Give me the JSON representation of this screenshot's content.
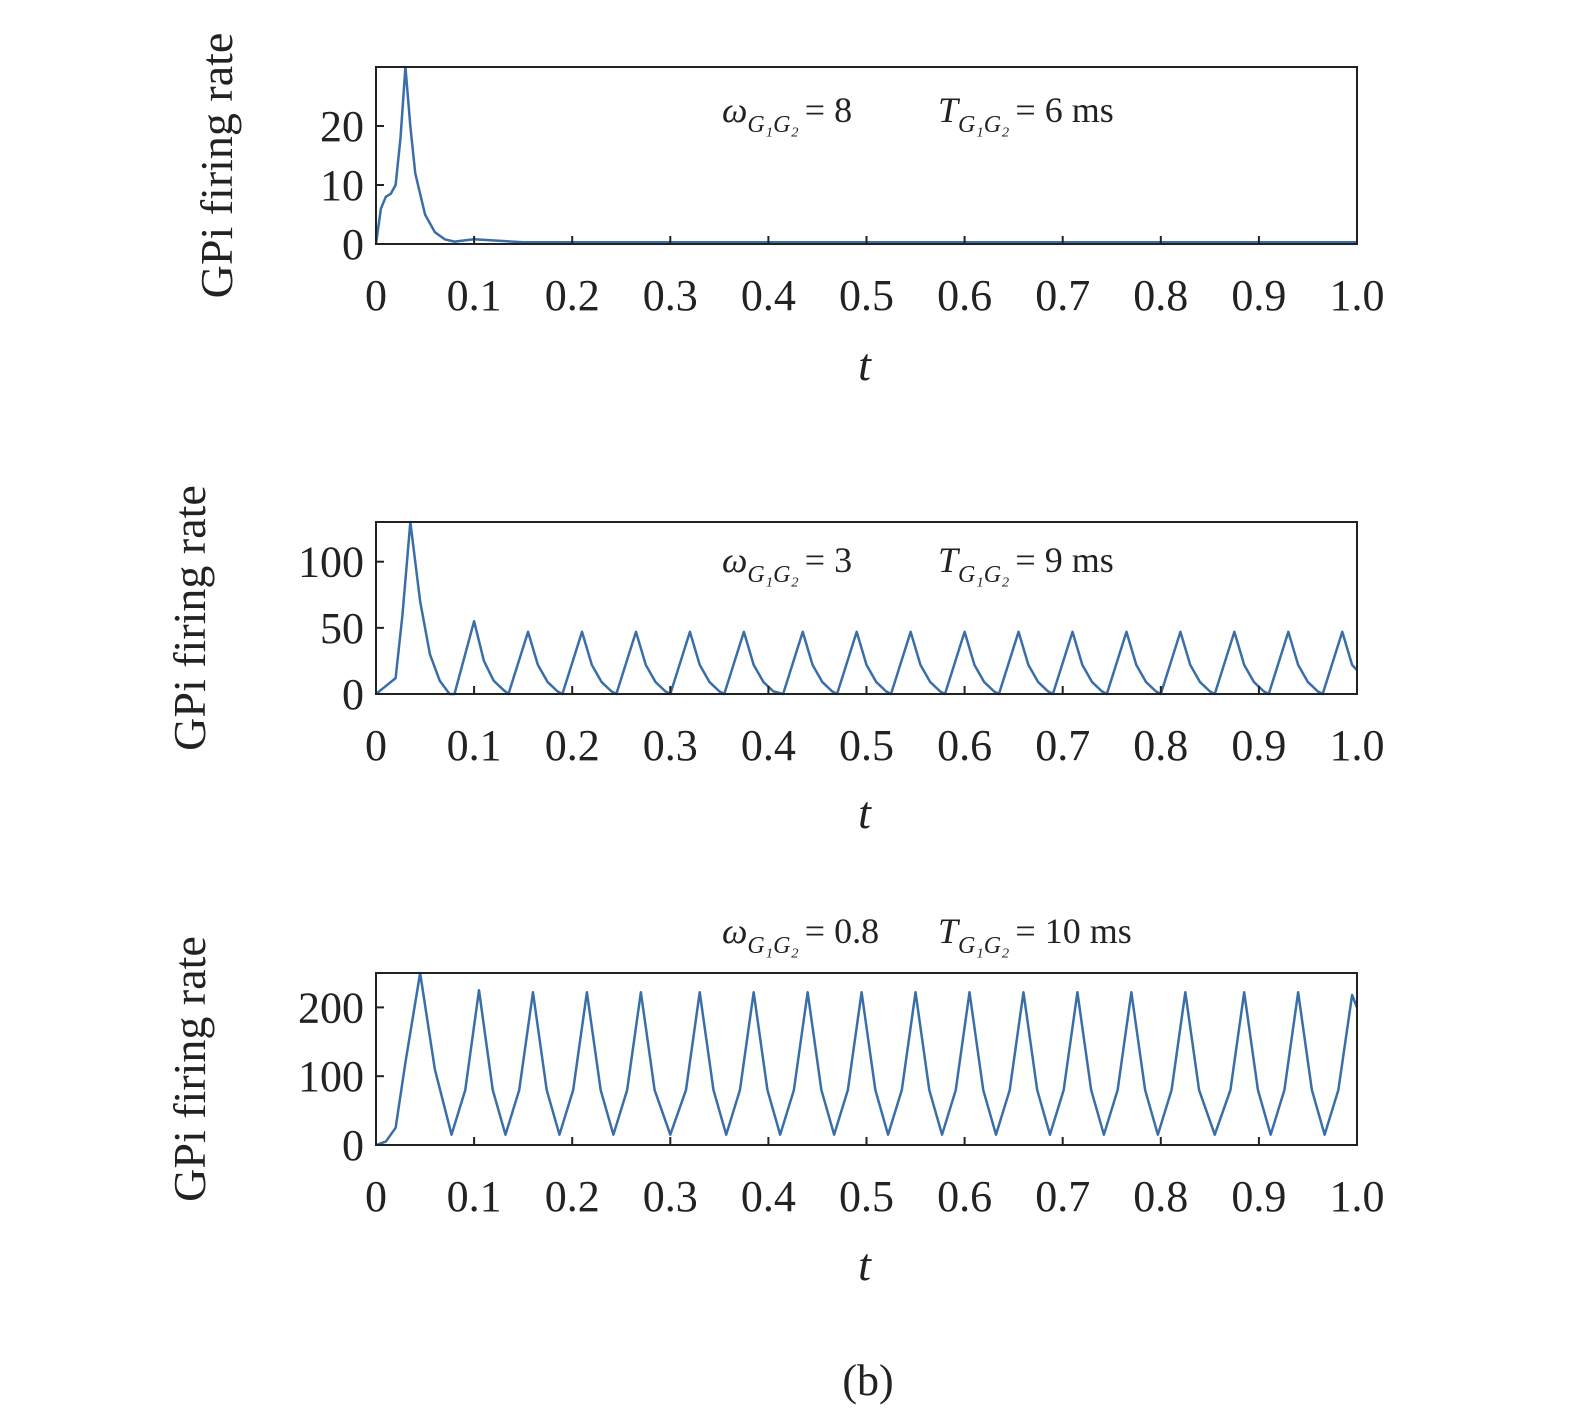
{
  "caption": "(b)",
  "chart_data": [
    {
      "type": "line",
      "ylabel": "GPi firing rate",
      "xlabel": "t",
      "color": "#3a6ea8",
      "annotations": [
        {
          "symbol": "ω",
          "subscript": "G₁G₂",
          "text": "= 8"
        },
        {
          "symbol": "T",
          "subscript": "G₁G₂",
          "text": "= 6 ms"
        }
      ],
      "xlim": [
        0,
        1
      ],
      "ylim": [
        0,
        30
      ],
      "xticks": [
        0,
        0.1,
        0.2,
        0.3,
        0.4,
        0.5,
        0.6,
        0.7,
        0.8,
        0.9,
        {
          "value": 1,
          "label": "1.0"
        }
      ],
      "yticks": [
        0,
        10,
        20
      ],
      "x": [
        0,
        0.005,
        0.01,
        0.015,
        0.02,
        0.025,
        0.03,
        0.035,
        0.04,
        0.05,
        0.06,
        0.07,
        0.08,
        0.1,
        0.15,
        0.2,
        0.3,
        0.4,
        0.5,
        0.6,
        0.7,
        0.8,
        0.9,
        1.0
      ],
      "values": [
        0,
        6,
        8,
        8.5,
        10,
        18,
        30,
        20,
        12,
        5,
        2,
        0.8,
        0.4,
        0.8,
        0.3,
        0.3,
        0.3,
        0.3,
        0.3,
        0.3,
        0.3,
        0.3,
        0.3,
        0.3
      ]
    },
    {
      "type": "line",
      "ylabel": "GPi firing rate",
      "xlabel": "t",
      "color": "#3a6ea8",
      "annotations": [
        {
          "symbol": "ω",
          "subscript": "G₁G₂",
          "text": "= 3"
        },
        {
          "symbol": "T",
          "subscript": "G₁G₂",
          "text": "= 9 ms"
        }
      ],
      "xlim": [
        0,
        1
      ],
      "ylim": [
        0,
        130
      ],
      "xticks": [
        0,
        0.1,
        0.2,
        0.3,
        0.4,
        0.5,
        0.6,
        0.7,
        0.8,
        0.9,
        {
          "value": 1,
          "label": "1.0"
        }
      ],
      "yticks": [
        0,
        50,
        100
      ],
      "x": [
        0,
        0.01,
        0.02,
        0.027,
        0.035,
        0.045,
        0.055,
        0.065,
        0.075,
        0.08,
        0.1,
        0.11,
        0.12,
        0.13,
        0.135,
        0.155,
        0.165,
        0.175,
        0.185,
        0.19,
        0.21,
        0.22,
        0.23,
        0.24,
        0.245,
        0.265,
        0.275,
        0.285,
        0.295,
        0.3,
        0.32,
        0.33,
        0.34,
        0.35,
        0.355,
        0.375,
        0.385,
        0.395,
        0.405,
        0.415,
        0.435,
        0.445,
        0.455,
        0.465,
        0.47,
        0.49,
        0.5,
        0.51,
        0.52,
        0.525,
        0.545,
        0.555,
        0.565,
        0.575,
        0.58,
        0.6,
        0.61,
        0.62,
        0.63,
        0.635,
        0.655,
        0.665,
        0.675,
        0.685,
        0.69,
        0.71,
        0.72,
        0.73,
        0.74,
        0.745,
        0.765,
        0.775,
        0.785,
        0.795,
        0.8,
        0.82,
        0.83,
        0.84,
        0.85,
        0.855,
        0.875,
        0.885,
        0.895,
        0.905,
        0.91,
        0.93,
        0.94,
        0.95,
        0.96,
        0.965,
        0.985,
        0.995,
        1.0
      ],
      "values": [
        0,
        6,
        12,
        60,
        130,
        70,
        30,
        10,
        0,
        0,
        55,
        25,
        10,
        3,
        0,
        47,
        22,
        9,
        2,
        0,
        47,
        22,
        9,
        2,
        0,
        47,
        22,
        9,
        2,
        0,
        47,
        22,
        9,
        2,
        0,
        47,
        22,
        9,
        2,
        0,
        47,
        22,
        9,
        2,
        0,
        47,
        22,
        9,
        2,
        0,
        47,
        22,
        9,
        2,
        0,
        47,
        22,
        9,
        2,
        0,
        47,
        22,
        9,
        2,
        0,
        47,
        22,
        9,
        2,
        0,
        47,
        22,
        9,
        2,
        0,
        47,
        22,
        9,
        2,
        0,
        47,
        22,
        9,
        2,
        0,
        47,
        22,
        9,
        2,
        0,
        47,
        22,
        18
      ]
    },
    {
      "type": "line",
      "ylabel": "GPi firing rate",
      "xlabel": "t",
      "color": "#3a6ea8",
      "annotations": [
        {
          "symbol": "ω",
          "subscript": "G₁G₂",
          "text": "= 0.8"
        },
        {
          "symbol": "T",
          "subscript": "G₁G₂",
          "text": "= 10 ms"
        }
      ],
      "xlim": [
        0,
        1
      ],
      "ylim": [
        0,
        250
      ],
      "xticks": [
        0,
        0.1,
        0.2,
        0.3,
        0.4,
        0.5,
        0.6,
        0.7,
        0.8,
        0.9,
        {
          "value": 1,
          "label": "1.0"
        }
      ],
      "yticks": [
        0,
        100,
        200
      ],
      "x": [
        0,
        0.01,
        0.02,
        0.03,
        0.045,
        0.06,
        0.077,
        0.091,
        0.105,
        0.119,
        0.132,
        0.146,
        0.16,
        0.174,
        0.187,
        0.201,
        0.215,
        0.229,
        0.242,
        0.256,
        0.27,
        0.284,
        0.3,
        0.316,
        0.33,
        0.344,
        0.357,
        0.371,
        0.385,
        0.399,
        0.412,
        0.426,
        0.44,
        0.454,
        0.467,
        0.481,
        0.495,
        0.509,
        0.522,
        0.536,
        0.55,
        0.564,
        0.577,
        0.591,
        0.605,
        0.619,
        0.632,
        0.646,
        0.66,
        0.674,
        0.687,
        0.701,
        0.715,
        0.729,
        0.742,
        0.756,
        0.77,
        0.784,
        0.797,
        0.811,
        0.825,
        0.839,
        0.855,
        0.871,
        0.885,
        0.899,
        0.912,
        0.926,
        0.94,
        0.954,
        0.967,
        0.981,
        0.995,
        1.0
      ],
      "values": [
        0,
        5,
        25,
        120,
        250,
        110,
        15,
        80,
        225,
        80,
        15,
        80,
        222,
        80,
        15,
        80,
        222,
        80,
        15,
        80,
        222,
        80,
        15,
        80,
        222,
        80,
        15,
        80,
        222,
        80,
        15,
        80,
        222,
        80,
        15,
        80,
        222,
        80,
        15,
        80,
        222,
        80,
        15,
        80,
        222,
        80,
        15,
        80,
        222,
        80,
        15,
        80,
        222,
        80,
        15,
        80,
        222,
        80,
        15,
        80,
        222,
        80,
        15,
        80,
        222,
        80,
        15,
        80,
        222,
        80,
        15,
        80,
        218,
        200
      ]
    }
  ]
}
